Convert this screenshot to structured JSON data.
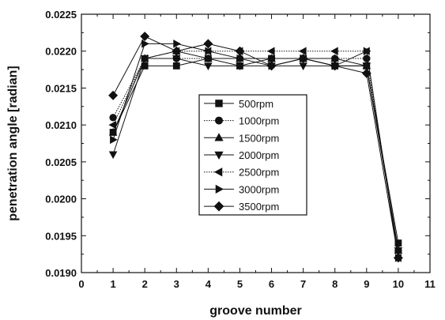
{
  "chart_data": {
    "type": "line",
    "xlabel": "groove number",
    "ylabel": "penetration angle [radian]",
    "xlim": [
      0,
      11
    ],
    "ylim": [
      0.019,
      0.0225
    ],
    "x_ticks": [
      0,
      1,
      2,
      3,
      4,
      5,
      6,
      7,
      8,
      9,
      10,
      11
    ],
    "y_ticks": [
      0.019,
      0.0195,
      0.02,
      0.0205,
      0.021,
      0.0215,
      0.022,
      0.0225
    ],
    "y_tick_labels": [
      "0.0190",
      "0.0195",
      "0.0200",
      "0.0205",
      "0.0210",
      "0.0215",
      "0.0220",
      "0.0225"
    ],
    "x_tick_labels": [
      "0",
      "1",
      "2",
      "3",
      "4",
      "5",
      "6",
      "7",
      "8",
      "9",
      "10",
      "11"
    ],
    "grid": false,
    "legend_position": "center",
    "x": [
      1,
      2,
      3,
      4,
      5,
      6,
      7,
      8,
      9,
      10
    ],
    "series": [
      {
        "name": "500rpm",
        "marker": "square",
        "line_style": "solid",
        "values": [
          0.0209,
          0.0218,
          0.0218,
          0.0219,
          0.0218,
          0.0219,
          0.0219,
          0.0218,
          0.0218,
          0.0194
        ]
      },
      {
        "name": "1000rpm",
        "marker": "circle",
        "line_style": "dotted",
        "values": [
          0.0211,
          0.0219,
          0.0219,
          0.0219,
          0.0219,
          0.0219,
          0.0219,
          0.0219,
          0.0219,
          0.0193
        ]
      },
      {
        "name": "1500rpm",
        "marker": "triangle-up",
        "line_style": "solid",
        "values": [
          0.0209,
          0.0219,
          0.022,
          0.0219,
          0.0219,
          0.0219,
          0.0219,
          0.0219,
          0.0218,
          0.0193
        ]
      },
      {
        "name": "2000rpm",
        "marker": "triangle-down",
        "line_style": "solid",
        "values": [
          0.0206,
          0.0219,
          0.0219,
          0.0218,
          0.0218,
          0.0218,
          0.0218,
          0.0218,
          0.0218,
          0.0193
        ]
      },
      {
        "name": "2500rpm",
        "marker": "triangle-left",
        "line_style": "dotted",
        "values": [
          0.021,
          0.0219,
          0.022,
          0.022,
          0.022,
          0.022,
          0.022,
          0.022,
          0.022,
          0.0192
        ]
      },
      {
        "name": "3000rpm",
        "marker": "triangle-right",
        "line_style": "solid",
        "values": [
          0.0208,
          0.0221,
          0.0221,
          0.022,
          0.0219,
          0.0218,
          0.0219,
          0.0218,
          0.022,
          0.0192
        ]
      },
      {
        "name": "3500rpm",
        "marker": "diamond",
        "line_style": "solid",
        "values": [
          0.0214,
          0.0222,
          0.022,
          0.0221,
          0.022,
          0.0218,
          0.0219,
          0.0218,
          0.0217,
          0.0192
        ]
      }
    ],
    "colors": {
      "ink": "#111111",
      "background": "#ffffff"
    }
  }
}
